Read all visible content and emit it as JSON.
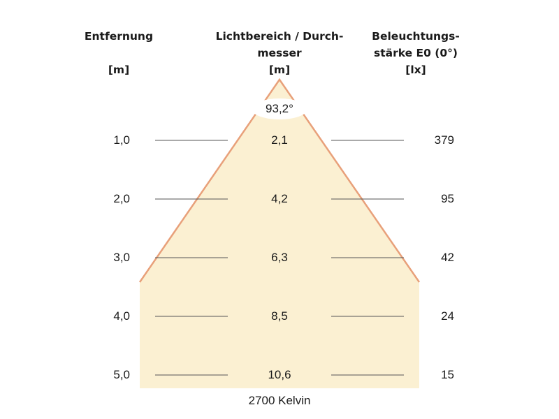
{
  "headers": {
    "distance": [
      "Entfernung",
      "",
      "[m]"
    ],
    "diameter": [
      "Lichtbereich / Durch-",
      "messer",
      "[m]"
    ],
    "illuminance": [
      "Beleuchtungs-",
      "stärke E0 (0°)",
      "[lx]"
    ]
  },
  "beam_angle": "93,2°",
  "rows": [
    {
      "distance": "1,0",
      "diameter": "2,1",
      "illuminance": "379"
    },
    {
      "distance": "2,0",
      "diameter": "4,2",
      "illuminance": "95"
    },
    {
      "distance": "3,0",
      "diameter": "6,3",
      "illuminance": "42"
    },
    {
      "distance": "4,0",
      "diameter": "8,5",
      "illuminance": "24"
    },
    {
      "distance": "5,0",
      "diameter": "10,6",
      "illuminance": "15"
    }
  ],
  "color_temperature": "2700 Kelvin",
  "colors": {
    "beam_fill": "#fbf0d2",
    "beam_edge": "#e8a07a",
    "rule_line": "#555555"
  }
}
